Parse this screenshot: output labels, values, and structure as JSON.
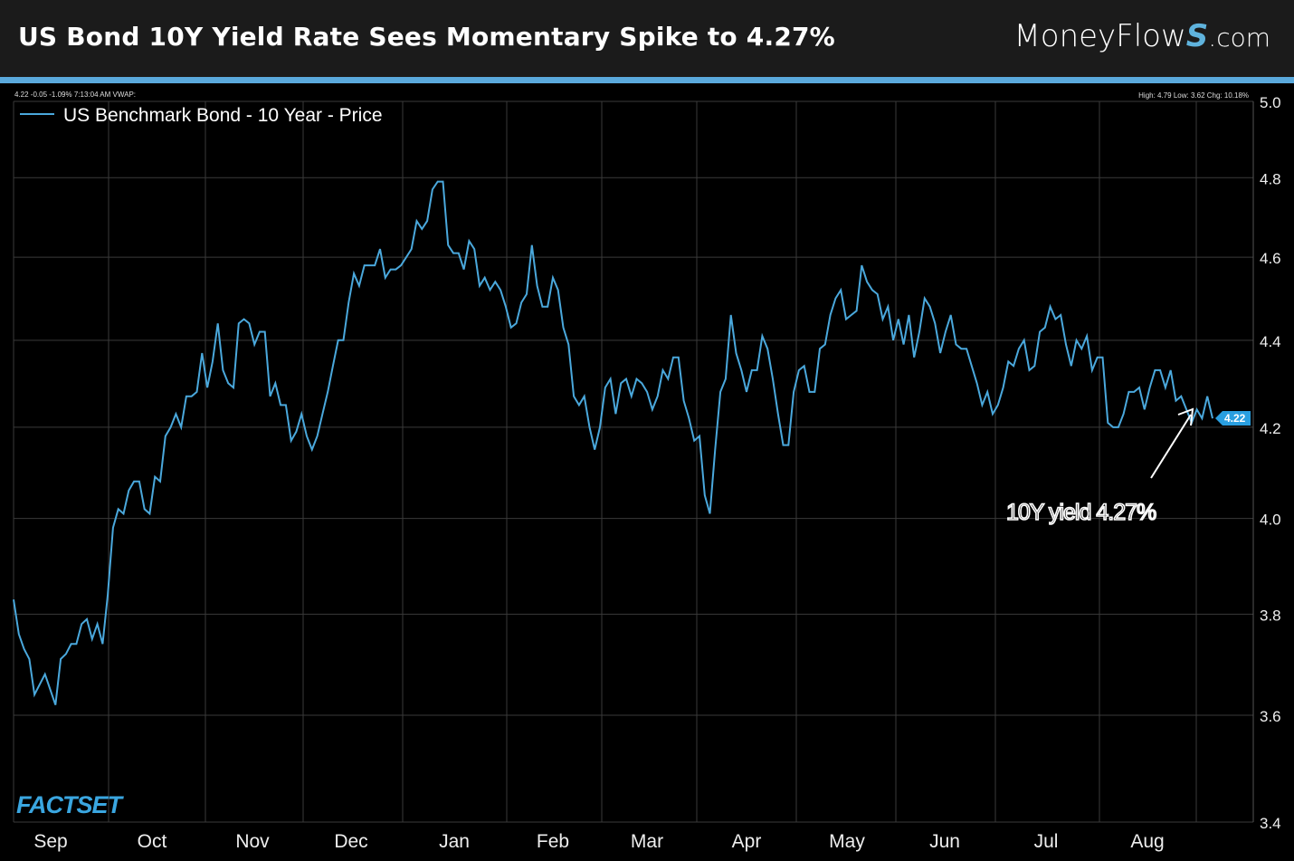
{
  "header": {
    "title": "US Bond 10Y Yield Rate Sees Momentary Spike to 4.27%",
    "logo": "MoneyFlows.com",
    "logo_parts": [
      "MoneyFlow",
      "S",
      ".com"
    ]
  },
  "colors": {
    "line": "#4aa8dc",
    "header_bg": "#1b1b1b",
    "stripe": "#5aa9dc",
    "grid": "#3a3a3a"
  },
  "chart_data": {
    "type": "line",
    "title": "",
    "info_left": "4.22 -0.05 -1.09% 7:13:04 AM VWAP:",
    "info_right": "High: 4.79 Low: 3.62 Chg: 10.18%",
    "legend": "US Benchmark Bond - 10 Year - Price",
    "y_scale": "log",
    "ylim": [
      3.4,
      5.0
    ],
    "yticks": [
      "5.0",
      "4.8",
      "4.6",
      "4.4",
      "4.2",
      "4.0",
      "3.8",
      "3.6",
      "3.4"
    ],
    "xticks": [
      "Sep",
      "Oct",
      "Nov",
      "Dec",
      "Jan",
      "Feb",
      "Mar",
      "Apr",
      "May",
      "Jun",
      "Jul",
      "Aug"
    ],
    "grid": true,
    "last_value": "4.22",
    "annotation": "10Y yield 4.27%",
    "watermark": "FACTSET",
    "series": [
      {
        "name": "US Benchmark Bond - 10 Year - Price",
        "values": [
          3.83,
          3.76,
          3.73,
          3.71,
          3.64,
          3.66,
          3.68,
          3.65,
          3.62,
          3.71,
          3.72,
          3.74,
          3.74,
          3.78,
          3.79,
          3.75,
          3.78,
          3.74,
          3.84,
          3.98,
          4.02,
          4.01,
          4.06,
          4.08,
          4.08,
          4.02,
          4.01,
          4.09,
          4.08,
          4.18,
          4.2,
          4.23,
          4.2,
          4.27,
          4.27,
          4.28,
          4.37,
          4.29,
          4.35,
          4.44,
          4.33,
          4.3,
          4.29,
          4.44,
          4.45,
          4.44,
          4.39,
          4.42,
          4.42,
          4.27,
          4.3,
          4.25,
          4.25,
          4.17,
          4.19,
          4.23,
          4.18,
          4.15,
          4.18,
          4.23,
          4.28,
          4.34,
          4.4,
          4.4,
          4.49,
          4.56,
          4.53,
          4.58,
          4.58,
          4.58,
          4.62,
          4.55,
          4.57,
          4.57,
          4.58,
          4.6,
          4.62,
          4.69,
          4.67,
          4.69,
          4.77,
          4.79,
          4.79,
          4.63,
          4.61,
          4.61,
          4.57,
          4.64,
          4.62,
          4.53,
          4.55,
          4.52,
          4.54,
          4.52,
          4.48,
          4.43,
          4.44,
          4.49,
          4.51,
          4.63,
          4.53,
          4.48,
          4.48,
          4.55,
          4.52,
          4.43,
          4.39,
          4.27,
          4.25,
          4.27,
          4.2,
          4.15,
          4.2,
          4.29,
          4.31,
          4.23,
          4.3,
          4.31,
          4.27,
          4.31,
          4.3,
          4.28,
          4.24,
          4.27,
          4.33,
          4.31,
          4.36,
          4.36,
          4.26,
          4.22,
          4.17,
          4.18,
          4.05,
          4.01,
          4.15,
          4.28,
          4.31,
          4.46,
          4.37,
          4.33,
          4.28,
          4.33,
          4.33,
          4.41,
          4.38,
          4.31,
          4.23,
          4.16,
          4.16,
          4.28,
          4.33,
          4.34,
          4.28,
          4.28,
          4.38,
          4.39,
          4.46,
          4.5,
          4.52,
          4.45,
          4.46,
          4.47,
          4.58,
          4.54,
          4.52,
          4.51,
          4.45,
          4.48,
          4.4,
          4.45,
          4.39,
          4.46,
          4.36,
          4.42,
          4.5,
          4.48,
          4.44,
          4.37,
          4.42,
          4.46,
          4.39,
          4.38,
          4.38,
          4.34,
          4.3,
          4.25,
          4.28,
          4.23,
          4.25,
          4.29,
          4.35,
          4.34,
          4.38,
          4.4,
          4.33,
          4.34,
          4.42,
          4.43,
          4.48,
          4.45,
          4.46,
          4.39,
          4.34,
          4.4,
          4.38,
          4.41,
          4.33,
          4.36,
          4.36,
          4.21,
          4.2,
          4.2,
          4.23,
          4.28,
          4.28,
          4.29,
          4.24,
          4.29,
          4.33,
          4.33,
          4.29,
          4.33,
          4.26,
          4.27,
          4.24,
          4.21,
          4.24,
          4.22,
          4.27,
          4.22
        ]
      }
    ]
  }
}
